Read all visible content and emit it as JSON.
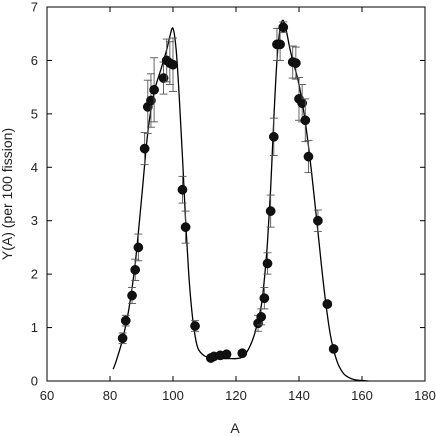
{
  "chart_data": {
    "type": "scatter",
    "xlabel": "A",
    "ylabel": "Y(A) (per 100 fission)",
    "xlim": [
      60,
      180
    ],
    "ylim": [
      0,
      7
    ],
    "xticks": [
      60,
      80,
      100,
      120,
      140,
      160,
      180
    ],
    "yticks": [
      0,
      1,
      2,
      3,
      4,
      5,
      6,
      7
    ],
    "grid": false,
    "series": [
      {
        "kind": "points_with_error_bars",
        "points": [
          {
            "x": 84,
            "y": 0.8,
            "err": 0.1
          },
          {
            "x": 85,
            "y": 1.13,
            "err": 0.1
          },
          {
            "x": 87,
            "y": 1.6,
            "err": 0.15
          },
          {
            "x": 88,
            "y": 2.08,
            "err": 0.2
          },
          {
            "x": 89,
            "y": 2.5,
            "err": 0.25
          },
          {
            "x": 91,
            "y": 4.35,
            "err": 0.3
          },
          {
            "x": 92,
            "y": 5.13,
            "err": 0.5
          },
          {
            "x": 93,
            "y": 5.25,
            "err": 0.5
          },
          {
            "x": 94,
            "y": 5.45,
            "err": 0.6
          },
          {
            "x": 97,
            "y": 5.67,
            "err": 0.3
          },
          {
            "x": 98,
            "y": 6.0,
            "err": 0.4
          },
          {
            "x": 99,
            "y": 5.95,
            "err": 0.4
          },
          {
            "x": 100,
            "y": 5.92,
            "err": 0.5
          },
          {
            "x": 103,
            "y": 3.58,
            "err": 0.25
          },
          {
            "x": 104,
            "y": 2.88,
            "err": 0.3
          },
          {
            "x": 107,
            "y": 1.03,
            "err": 0.1
          },
          {
            "x": 112,
            "y": 0.43,
            "err": 0.05
          },
          {
            "x": 113,
            "y": 0.46,
            "err": 0.05
          },
          {
            "x": 115,
            "y": 0.48,
            "err": 0.05
          },
          {
            "x": 117,
            "y": 0.5,
            "err": 0.05
          },
          {
            "x": 122,
            "y": 0.52,
            "err": 0.05
          },
          {
            "x": 127,
            "y": 1.08,
            "err": 0.15
          },
          {
            "x": 128,
            "y": 1.2,
            "err": 0.15
          },
          {
            "x": 129,
            "y": 1.55,
            "err": 0.2
          },
          {
            "x": 130,
            "y": 2.2,
            "err": 0.2
          },
          {
            "x": 131,
            "y": 3.18,
            "err": 0.3
          },
          {
            "x": 132,
            "y": 4.57,
            "err": 0.35
          },
          {
            "x": 133,
            "y": 6.3,
            "err": 0.3
          },
          {
            "x": 134,
            "y": 6.3,
            "err": 0.3
          },
          {
            "x": 135,
            "y": 6.62,
            "err": 0.1
          },
          {
            "x": 138,
            "y": 5.97,
            "err": 0.3
          },
          {
            "x": 139,
            "y": 5.95,
            "err": 0.3
          },
          {
            "x": 140,
            "y": 5.28,
            "err": 0.4
          },
          {
            "x": 141,
            "y": 5.2,
            "err": 0.35
          },
          {
            "x": 142,
            "y": 4.88,
            "err": 0.4
          },
          {
            "x": 143,
            "y": 4.2,
            "err": 0.3
          },
          {
            "x": 146,
            "y": 3.0,
            "err": 0.2
          },
          {
            "x": 149,
            "y": 1.44,
            "err": 0.05
          },
          {
            "x": 151,
            "y": 0.6,
            "err": 0.05
          }
        ]
      },
      {
        "kind": "fit_curve",
        "x": [
          81,
          82,
          84,
          86,
          88,
          90,
          92,
          94,
          96,
          98,
          99,
          100,
          101,
          102,
          103,
          104,
          105,
          106,
          107,
          108,
          110,
          112,
          114,
          116,
          118,
          120,
          122,
          124,
          126,
          128,
          129,
          130,
          131,
          132,
          133,
          134,
          135,
          136,
          137,
          138,
          140,
          142,
          144,
          146,
          148,
          150,
          152,
          154,
          156,
          158,
          160,
          162
        ],
        "y": [
          0.22,
          0.38,
          0.78,
          1.35,
          2.2,
          3.4,
          4.65,
          5.4,
          5.8,
          6.2,
          6.45,
          6.6,
          6.2,
          5.3,
          4.2,
          3.0,
          2.0,
          1.3,
          0.85,
          0.6,
          0.47,
          0.44,
          0.43,
          0.42,
          0.42,
          0.42,
          0.45,
          0.6,
          0.9,
          1.4,
          1.9,
          2.6,
          3.6,
          4.9,
          6.0,
          6.6,
          6.75,
          6.55,
          6.25,
          6.0,
          5.55,
          4.85,
          3.9,
          2.8,
          1.7,
          0.85,
          0.38,
          0.15,
          0.06,
          0.02,
          0.01,
          0.0
        ]
      }
    ]
  }
}
